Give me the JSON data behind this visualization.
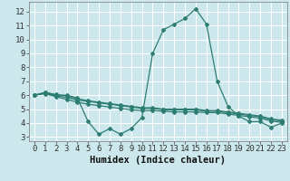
{
  "x": [
    0,
    1,
    2,
    3,
    4,
    5,
    6,
    7,
    8,
    9,
    10,
    11,
    12,
    13,
    14,
    15,
    16,
    17,
    18,
    19,
    20,
    21,
    22,
    23
  ],
  "series": [
    [
      6.0,
      6.2,
      6.0,
      6.0,
      5.8,
      4.1,
      3.2,
      3.6,
      3.2,
      3.6,
      4.4,
      9.0,
      10.7,
      11.1,
      11.5,
      12.2,
      11.1,
      7.0,
      5.2,
      4.5,
      4.1,
      4.1,
      3.7,
      4.0
    ],
    [
      6.0,
      6.15,
      5.95,
      5.85,
      5.65,
      5.55,
      5.45,
      5.35,
      5.25,
      5.15,
      5.05,
      5.05,
      4.95,
      4.95,
      4.95,
      4.95,
      4.85,
      4.85,
      4.75,
      4.65,
      4.55,
      4.45,
      4.25,
      4.15
    ],
    [
      6.0,
      6.1,
      5.9,
      5.7,
      5.5,
      5.35,
      5.25,
      5.15,
      5.05,
      4.95,
      4.9,
      4.9,
      4.85,
      4.8,
      4.8,
      4.8,
      4.75,
      4.75,
      4.65,
      4.55,
      4.45,
      4.35,
      4.15,
      4.05
    ],
    [
      6.0,
      6.2,
      6.05,
      5.95,
      5.75,
      5.6,
      5.5,
      5.4,
      5.3,
      5.2,
      5.1,
      5.1,
      5.0,
      5.0,
      5.0,
      5.0,
      4.9,
      4.9,
      4.8,
      4.7,
      4.6,
      4.5,
      4.3,
      4.2
    ]
  ],
  "line_color": "#2e7d72",
  "bg_color": "#cce8ec",
  "grid_color": "#ffffff",
  "xlabel": "Humidex (Indice chaleur)",
  "xlim": [
    -0.5,
    23.5
  ],
  "ylim": [
    2.7,
    12.7
  ],
  "yticks": [
    3,
    4,
    5,
    6,
    7,
    8,
    9,
    10,
    11,
    12
  ],
  "xticks": [
    0,
    1,
    2,
    3,
    4,
    5,
    6,
    7,
    8,
    9,
    10,
    11,
    12,
    13,
    14,
    15,
    16,
    17,
    18,
    19,
    20,
    21,
    22,
    23
  ],
  "marker": "D",
  "markersize": 2.0,
  "linewidth": 0.9,
  "tick_font_size": 6.5,
  "label_font_size": 7.5
}
